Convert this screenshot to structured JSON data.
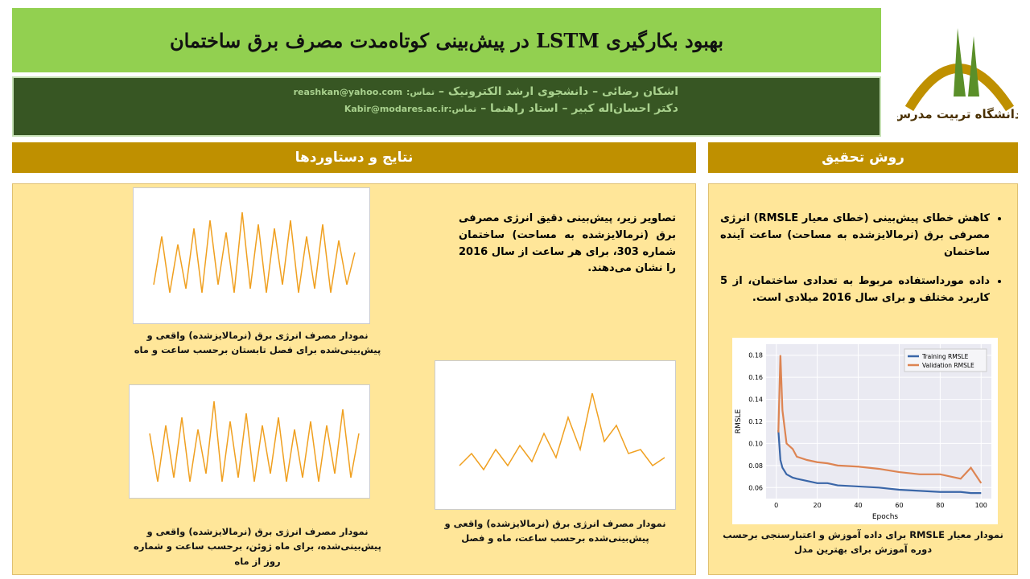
{
  "header": {
    "title": "بهبود بکارگیری LSTM در پیش‌بینی کوتاه‌مدت مصرف برق ساختمان",
    "authors": [
      {
        "name": "اشکان رضائی – دانشجوی ارشد الکترونیک –",
        "contact_label": "تماس:",
        "email": "reashkan@yahoo.com"
      },
      {
        "name": "دکتر احسان‌اله کبیر – استاد راهنما –",
        "contact_label": "تماس:",
        "email": "Kabir@modares.ac.ir"
      }
    ]
  },
  "logo": {
    "text": "دانشگاه تربیت مدرس"
  },
  "results": {
    "heading": "نتایج و دستاوردها",
    "intro": "تصاویر زیر، پیش‌بینی دقیق انرژی مصرفی برق (نرمالایزشده به مساحت) ساختمان شماره 303، برای هر ساعت از سال 2016 را نشان می‌دهند.",
    "figures": [
      {
        "caption": "نمودار مصرف انرژی برق (نرمالایزشده) واقعی و پیش‌بینی‌شده برای فصل تابستان برحسب ساعت و ماه"
      },
      {
        "caption": "نمودار مصرف انرژی برق (نرمالایزشده) واقعی و پیش‌بینی‌شده، برای ماه ژوئن، برحسب ساعت و شماره روز از ماه"
      },
      {
        "caption": "نمودار مصرف انرژی برق (نرمالایزشده) واقعی و پیش‌بینی‌شده برحسب ساعت، ماه و فصل"
      }
    ]
  },
  "method": {
    "heading": "روش تحقیق",
    "bullets": [
      "کاهش خطای پیش‌بینی (خطای معیار RMSLE) انرژی مصرفی برق (نرمالایزشده به مساحت) ساعت آینده ساختمان",
      "داده مورداستفاده مربوط به تعدادی ساختمان، از 5 کاربرد مختلف و برای سال 2016 میلادی است."
    ],
    "figure": {
      "caption": "نمودار معیار RMSLE برای داده آموزش و اعتبارسنجی برحسب دوره آموزش برای بهترین مدل",
      "chart_data": {
        "type": "line",
        "x_label": "Epochs",
        "y_label": "RMSLE",
        "x": [
          1,
          2,
          3,
          5,
          8,
          10,
          15,
          20,
          25,
          30,
          40,
          50,
          60,
          70,
          80,
          90,
          95,
          100
        ],
        "series": [
          {
            "name": "Training RMSLE",
            "color": "#3a66a8",
            "values": [
              0.112,
              0.085,
              0.078,
              0.072,
              0.069,
              0.068,
              0.066,
              0.064,
              0.064,
              0.062,
              0.061,
              0.06,
              0.058,
              0.057,
              0.056,
              0.056,
              0.055,
              0.055
            ]
          },
          {
            "name": "Validation RMSLE",
            "color": "#dd8452",
            "values": [
              0.11,
              0.18,
              0.13,
              0.1,
              0.095,
              0.088,
              0.085,
              0.083,
              0.082,
              0.08,
              0.079,
              0.077,
              0.074,
              0.072,
              0.072,
              0.068,
              0.078,
              0.064
            ]
          }
        ],
        "xlim": [
          -5,
          105
        ],
        "ylim": [
          0.05,
          0.19
        ],
        "xticks": [
          0,
          20,
          40,
          60,
          80,
          100
        ],
        "yticks": [
          0.06,
          0.08,
          {
            "value": 0.1,
            "label": "0.10"
          },
          0.12,
          0.14,
          0.16,
          0.18
        ],
        "legend": "upper right",
        "grid": true
      }
    }
  }
}
